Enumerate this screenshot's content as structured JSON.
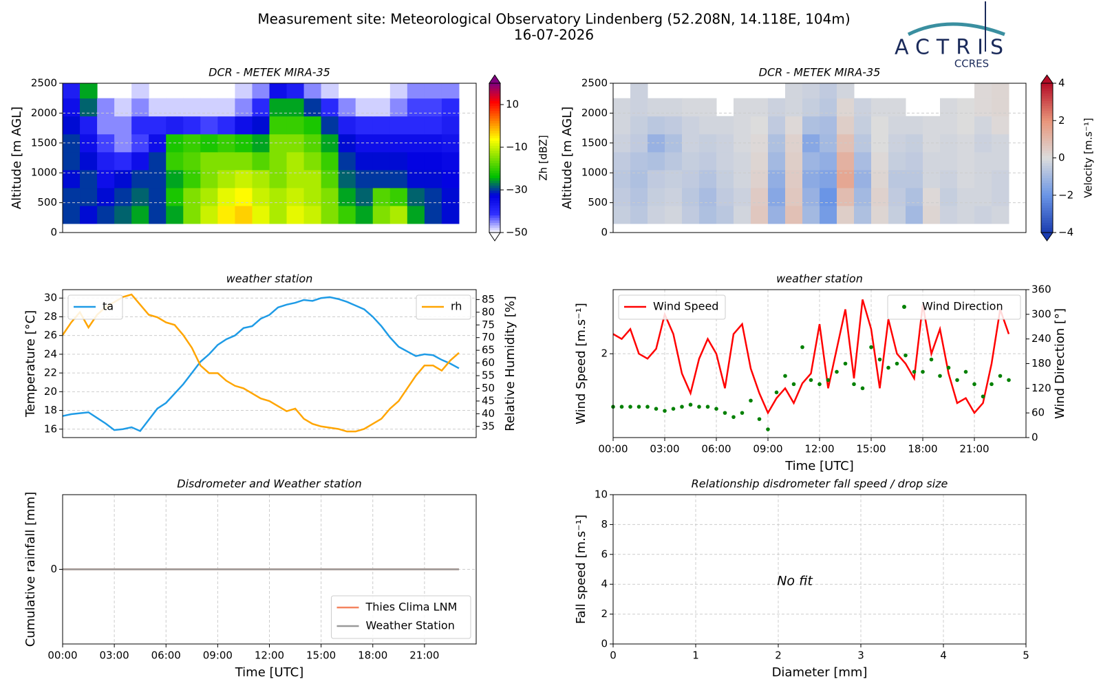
{
  "header": {
    "title": "Measurement site: Meteorological Observatory Lindenberg (52.208N, 14.118E, 104m)",
    "date": "16-07-2026",
    "logo": "ACTRIS",
    "logo_sub": "CCRES"
  },
  "chart_data": [
    {
      "type": "heatmap",
      "title": "DCR - METEK MIRA-35",
      "ylabel": "Altitude [m AGL]",
      "zlabel": "Zh [dBZ]",
      "xlim": [
        0,
        24
      ],
      "ylim": [
        0,
        2500
      ],
      "yticks": [
        0,
        500,
        1000,
        1500,
        2000,
        2500
      ],
      "grid": true,
      "x_edges": [
        0,
        1,
        2,
        3,
        4,
        5,
        6,
        7,
        8,
        9,
        10,
        11,
        12,
        13,
        14,
        15,
        16,
        17,
        18,
        19,
        20,
        21,
        22,
        23
      ],
      "y_edges": [
        150,
        450,
        750,
        1050,
        1350,
        1650,
        1950,
        2250,
        2500
      ],
      "zlim": [
        -50,
        20
      ],
      "zticks": [
        10,
        {
          "value": -10,
          "label": "−10"
        },
        {
          "value": -30,
          "label": "−30"
        },
        {
          "value": -50,
          "label": "−50"
        }
      ],
      "colormap": [
        "#ffffff",
        "#3030ff",
        "#0000e0",
        "#00c000",
        "#80e000",
        "#ffff00",
        "#ff8000",
        "#ff0000",
        "#800080"
      ],
      "z": [
        [
          -30,
          -32,
          -30,
          -28,
          -25,
          -30,
          -25,
          -15,
          -10,
          -5,
          -3,
          -8,
          -12,
          -8,
          -10,
          -15,
          -20,
          -25,
          -15,
          -12,
          -25,
          -30,
          -32
        ],
        [
          -30,
          -30,
          -32,
          -30,
          -28,
          -30,
          -22,
          -15,
          -12,
          -8,
          -6,
          -10,
          -12,
          -10,
          -12,
          -15,
          -25,
          -28,
          -18,
          -20,
          -28,
          -30,
          -32
        ],
        [
          -32,
          -30,
          -35,
          -32,
          -30,
          -30,
          -25,
          -20,
          -15,
          -12,
          -10,
          -12,
          -15,
          -12,
          -12,
          -18,
          -28,
          -30,
          -30,
          -30,
          -32,
          -32,
          -33
        ],
        [
          -30,
          -32,
          -38,
          -40,
          -35,
          -30,
          -20,
          -18,
          -15,
          -15,
          -15,
          -18,
          -15,
          -12,
          -15,
          -20,
          -30,
          -32,
          -32,
          -32,
          -33,
          -33,
          -34
        ],
        [
          -30,
          -35,
          -42,
          -45,
          -42,
          -35,
          -22,
          -20,
          -22,
          -20,
          -22,
          -25,
          -15,
          -15,
          -18,
          -25,
          -32,
          -35,
          -35,
          -35,
          -35,
          -35,
          -36
        ],
        [
          -32,
          -38,
          -45,
          -45,
          -40,
          -40,
          -38,
          -40,
          -42,
          -40,
          -35,
          -32,
          -20,
          -20,
          -22,
          -30,
          -38,
          -40,
          -40,
          -40,
          -40,
          -40,
          -38
        ],
        [
          -35,
          -28,
          -45,
          -48,
          -45,
          -48,
          -48,
          -48,
          -48,
          -48,
          -45,
          -40,
          -25,
          -25,
          -30,
          -40,
          -45,
          -48,
          -48,
          -45,
          -42,
          -42,
          -40
        ],
        [
          -38,
          -25,
          null,
          null,
          -48,
          null,
          null,
          null,
          null,
          null,
          -48,
          -45,
          -35,
          -38,
          -45,
          -48,
          null,
          null,
          null,
          -48,
          -45,
          -45,
          -45
        ]
      ]
    },
    {
      "type": "heatmap",
      "title": "DCR - METEK MIRA-35",
      "ylabel": "Altitude [m AGL]",
      "zlabel": "Velocity [m.s⁻¹]",
      "xlim": [
        0,
        24
      ],
      "ylim": [
        0,
        2500
      ],
      "yticks": [
        0,
        500,
        1000,
        1500,
        2000,
        2500
      ],
      "grid": true,
      "x_edges": [
        0,
        1,
        2,
        3,
        4,
        5,
        6,
        7,
        8,
        9,
        10,
        11,
        12,
        13,
        14,
        15,
        16,
        17,
        18,
        19,
        20,
        21,
        22,
        23
      ],
      "y_edges": [
        150,
        450,
        750,
        1050,
        1350,
        1650,
        1950,
        2250,
        2500
      ],
      "zlim": [
        -4,
        4
      ],
      "zticks": [
        4,
        2,
        0,
        {
          "value": -2,
          "label": "−2"
        },
        {
          "value": -4,
          "label": "−4"
        }
      ],
      "colormap": [
        "#1a3cb0",
        "#6a95e6",
        "#dcdcdc",
        "#e8957a",
        "#b40c26"
      ],
      "z": [
        [
          -0.4,
          -0.6,
          -0.3,
          -0.2,
          -0.5,
          -0.8,
          -0.6,
          -0.2,
          0.6,
          -1.2,
          0.8,
          -1.0,
          -1.8,
          0.4,
          -0.8,
          0.2,
          -0.4,
          -1.0,
          0.2,
          -0.3,
          -0.2,
          -0.3,
          -0.2
        ],
        [
          -0.5,
          -0.7,
          -0.4,
          -0.3,
          -0.6,
          -0.9,
          -0.5,
          -0.3,
          0.5,
          -1.5,
          0.6,
          -1.2,
          -2.0,
          0.9,
          -1.0,
          0.3,
          -0.5,
          -0.8,
          0.1,
          -0.4,
          -0.2,
          -0.2,
          -0.3
        ],
        [
          -0.6,
          -0.8,
          -0.5,
          -0.4,
          -0.5,
          -0.7,
          -0.4,
          -0.2,
          0.3,
          -1.3,
          0.5,
          -1.4,
          -1.6,
          1.5,
          -1.2,
          0.2,
          -0.6,
          -0.6,
          -0.2,
          -0.3,
          -0.1,
          -0.2,
          -0.3
        ],
        [
          -0.5,
          -0.7,
          -0.8,
          -0.6,
          -0.4,
          -0.5,
          -0.3,
          -0.2,
          0.2,
          -1.0,
          0.4,
          -1.1,
          -1.3,
          1.2,
          -0.9,
          0.1,
          -0.4,
          -0.5,
          -0.2,
          -0.2,
          -0.1,
          -0.2,
          -0.2
        ],
        [
          -0.3,
          -0.5,
          -1.2,
          -0.8,
          -0.3,
          -0.4,
          -0.3,
          -0.1,
          0.1,
          -0.8,
          0.3,
          -1.5,
          -1.0,
          0.8,
          -0.6,
          0.0,
          -0.3,
          -0.4,
          -0.1,
          -0.2,
          -0.1,
          -0.3,
          -0.2
        ],
        [
          -0.2,
          -0.4,
          -0.6,
          -0.5,
          -0.3,
          -0.2,
          -0.2,
          -0.1,
          0.0,
          -0.5,
          0.1,
          -0.8,
          -0.9,
          0.4,
          -0.4,
          0.0,
          -0.2,
          -0.2,
          -0.1,
          -0.1,
          0.0,
          -0.2,
          0.1
        ],
        [
          -0.2,
          -0.3,
          -0.2,
          -0.2,
          -0.1,
          -0.1,
          null,
          -0.1,
          -0.1,
          -0.3,
          -0.2,
          -0.4,
          -0.6,
          0.2,
          -0.3,
          -0.1,
          -0.1,
          null,
          null,
          -0.1,
          0.0,
          0.1,
          0.2
        ],
        [
          null,
          -0.3,
          null,
          null,
          null,
          null,
          null,
          null,
          null,
          null,
          -0.2,
          -0.3,
          -0.5,
          -0.2,
          null,
          null,
          null,
          null,
          null,
          null,
          null,
          0.1,
          0.2
        ]
      ]
    },
    {
      "type": "line",
      "title": "weather station",
      "ylabel": "Temperature [°C]",
      "y2label": "Relative Humidity [%]",
      "grid": true,
      "xlim": [
        0,
        24
      ],
      "ylim": [
        15.1,
        30.9
      ],
      "yticks": [
        16,
        18,
        20,
        22,
        24,
        26,
        28,
        30
      ],
      "y2lim": [
        30.6,
        88.9
      ],
      "y2ticks": [
        35,
        40,
        45,
        50,
        55,
        60,
        65,
        70,
        75,
        80,
        85
      ],
      "x": [
        0,
        0.5,
        1,
        1.5,
        2,
        2.5,
        3,
        3.5,
        4,
        4.5,
        5,
        5.5,
        6,
        6.5,
        7,
        7.5,
        8,
        8.5,
        9,
        9.5,
        10,
        10.5,
        11,
        11.5,
        12,
        12.5,
        13,
        13.5,
        14,
        14.5,
        15,
        15.5,
        16,
        16.5,
        17,
        17.5,
        18,
        18.5,
        19,
        19.5,
        20,
        20.5,
        21,
        21.5,
        22,
        22.5,
        23
      ],
      "series": [
        {
          "name": "ta",
          "color": "#1e9be6",
          "legend": "upper left",
          "values": [
            17.4,
            17.6,
            17.7,
            17.8,
            17.2,
            16.6,
            15.9,
            16.0,
            16.2,
            15.8,
            17.0,
            18.2,
            18.8,
            19.8,
            20.8,
            22.0,
            23.2,
            24.0,
            25.0,
            25.6,
            26.0,
            26.8,
            27.0,
            27.8,
            28.2,
            29.0,
            29.3,
            29.5,
            29.8,
            29.7,
            30.0,
            30.1,
            29.9,
            29.6,
            29.2,
            28.8,
            28.0,
            27.0,
            25.8,
            24.8,
            24.3,
            23.8,
            24.0,
            23.9,
            23.4,
            23.0,
            22.5
          ]
        },
        {
          "name": "rh",
          "color": "#ffa500",
          "axis": "y2",
          "legend": "upper right",
          "values": [
            71,
            76,
            80,
            74,
            79,
            82,
            84,
            86,
            87,
            83,
            79,
            78,
            76,
            75,
            71,
            66,
            59,
            56,
            56,
            53,
            51,
            50,
            48,
            46,
            45,
            43,
            41,
            42,
            38,
            36,
            35,
            34.5,
            34,
            33,
            33,
            34,
            36,
            38,
            42,
            45,
            50,
            55,
            59,
            59,
            57,
            61,
            64
          ]
        }
      ]
    },
    {
      "type": "line",
      "title": "weather station",
      "xlabel": "Time [UTC]",
      "ylabel": "Wind Speed [m.s⁻¹]",
      "y2label": "Wind Direction [°]",
      "grid": true,
      "xlim": [
        0,
        24
      ],
      "xticks": [
        {
          "value": 0,
          "label": "00:00"
        },
        {
          "value": 3,
          "label": "03:00"
        },
        {
          "value": 6,
          "label": "06:00"
        },
        {
          "value": 9,
          "label": "09:00"
        },
        {
          "value": 12,
          "label": "12:00"
        },
        {
          "value": 15,
          "label": "15:00"
        },
        {
          "value": 18,
          "label": "18:00"
        },
        {
          "value": 21,
          "label": "21:00"
        }
      ],
      "ylim": [
        0.3,
        3.3
      ],
      "yticks": [
        2
      ],
      "y2lim": [
        0,
        360
      ],
      "y2ticks": [
        0,
        60,
        120,
        180,
        240,
        300,
        360
      ],
      "x": [
        0,
        0.5,
        1,
        1.5,
        2,
        2.5,
        3,
        3.5,
        4,
        4.5,
        5,
        5.5,
        6,
        6.5,
        7,
        7.5,
        8,
        8.5,
        9,
        9.5,
        10,
        10.5,
        11,
        11.5,
        12,
        12.5,
        13,
        13.5,
        14,
        14.5,
        15,
        15.5,
        16,
        16.5,
        17,
        17.5,
        18,
        18.5,
        19,
        19.5,
        20,
        20.5,
        21,
        21.5,
        22,
        22.5,
        23
      ],
      "series": [
        {
          "name": "Wind Speed",
          "color": "#ff0000",
          "legend": "upper left",
          "values": [
            2.4,
            2.3,
            2.5,
            2.0,
            1.9,
            2.1,
            2.8,
            2.4,
            1.6,
            1.2,
            1.9,
            2.3,
            2.0,
            1.3,
            2.4,
            2.6,
            1.7,
            1.2,
            0.8,
            1.1,
            1.3,
            1.0,
            1.4,
            1.6,
            2.6,
            1.3,
            2.1,
            2.9,
            1.5,
            3.1,
            2.5,
            1.3,
            2.7,
            2.0,
            1.8,
            1.5,
            3.0,
            2.0,
            2.5,
            1.6,
            1.0,
            1.1,
            0.8,
            1.0,
            1.8,
            2.9,
            2.4
          ]
        },
        {
          "name": "Wind Direction",
          "color": "#008000",
          "axis": "y2",
          "style": "dots",
          "legend": "upper right",
          "values": [
            75,
            75,
            75,
            75,
            75,
            70,
            65,
            70,
            75,
            80,
            75,
            75,
            70,
            60,
            50,
            60,
            90,
            45,
            20,
            110,
            150,
            130,
            220,
            140,
            130,
            140,
            160,
            180,
            130,
            120,
            220,
            190,
            170,
            180,
            200,
            160,
            160,
            190,
            150,
            170,
            140,
            160,
            130,
            100,
            130,
            150,
            140
          ]
        }
      ]
    },
    {
      "type": "line",
      "title": "Disdrometer and Weather station",
      "xlabel": "Time [UTC]",
      "ylabel": "Cumulative rainfall [mm]",
      "grid": true,
      "legend": "lower right",
      "xlim": [
        0,
        24
      ],
      "xticks": [
        {
          "value": 0,
          "label": "00:00"
        },
        {
          "value": 3,
          "label": "03:00"
        },
        {
          "value": 6,
          "label": "06:00"
        },
        {
          "value": 9,
          "label": "09:00"
        },
        {
          "value": 12,
          "label": "12:00"
        },
        {
          "value": 15,
          "label": "15:00"
        },
        {
          "value": 18,
          "label": "18:00"
        },
        {
          "value": 21,
          "label": "21:00"
        }
      ],
      "ylim": [
        -1,
        1
      ],
      "yticks": [
        0
      ],
      "x": [
        0,
        23
      ],
      "series": [
        {
          "name": "Thies Clima LNM",
          "color": "#f4845f",
          "values": [
            0,
            0
          ]
        },
        {
          "name": "Weather Station",
          "color": "#999999",
          "values": [
            0,
            0
          ]
        }
      ]
    },
    {
      "type": "scatter",
      "title": "Relationship disdrometer fall speed / drop size",
      "xlabel": "Diameter [mm]",
      "ylabel": "Fall speed [m.s⁻¹]",
      "annotation": "No fit",
      "grid": true,
      "xlim": [
        0,
        5
      ],
      "xticks": [
        0,
        1,
        2,
        3,
        4,
        5
      ],
      "ylim": [
        0,
        10
      ],
      "yticks": [
        0,
        2,
        4,
        6,
        8,
        10
      ]
    }
  ]
}
